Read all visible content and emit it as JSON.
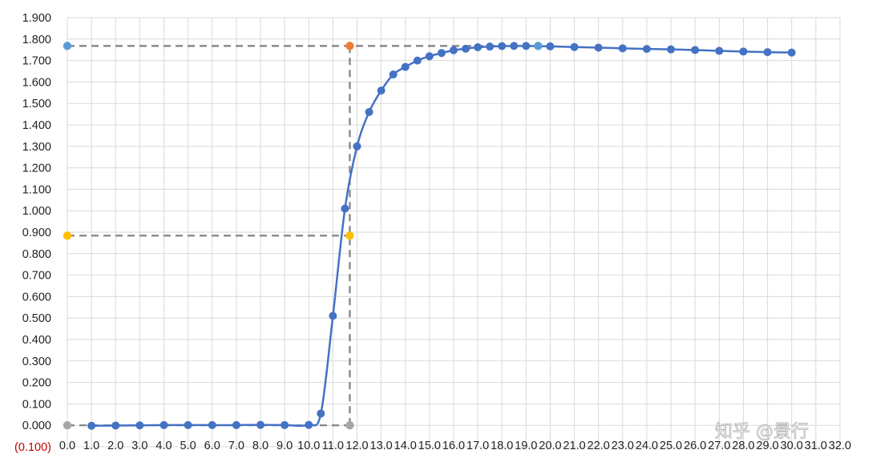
{
  "chart_data": {
    "type": "scatter",
    "title": "",
    "xlabel": "",
    "ylabel": "",
    "xlim": [
      0,
      32
    ],
    "ylim": [
      -0.1,
      1.9
    ],
    "y_ticks": [
      -0.1,
      0.0,
      0.1,
      0.2,
      0.3,
      0.4,
      0.5,
      0.6,
      0.7,
      0.8,
      0.9,
      1.0,
      1.1,
      1.2,
      1.3,
      1.4,
      1.5,
      1.6,
      1.7,
      1.8,
      1.9
    ],
    "y_tick_labels": [
      "(0.100)",
      "0.000",
      "0.100",
      "0.200",
      "0.300",
      "0.400",
      "0.500",
      "0.600",
      "0.700",
      "0.800",
      "0.900",
      "1.000",
      "1.100",
      "1.200",
      "1.300",
      "1.400",
      "1.500",
      "1.600",
      "1.700",
      "1.800",
      "1.900"
    ],
    "x_ticks": [
      0,
      1,
      2,
      3,
      4,
      5,
      6,
      7,
      8,
      9,
      10,
      11,
      12,
      13,
      14,
      15,
      16,
      17,
      18,
      19,
      20,
      21,
      22,
      23,
      24,
      25,
      26,
      27,
      28,
      29,
      30,
      31,
      32
    ],
    "x_tick_labels": [
      "0.0",
      "1.0",
      "2.0",
      "3.0",
      "4.0",
      "5.0",
      "6.0",
      "7.0",
      "8.0",
      "9.0",
      "10.0",
      "11.0",
      "12.0",
      "13.0",
      "14.0",
      "15.0",
      "16.0",
      "17.0",
      "18.0",
      "19.0",
      "20.0",
      "21.0",
      "22.0",
      "23.0",
      "24.0",
      "25.0",
      "26.0",
      "27.0",
      "28.0",
      "29.0",
      "30.0",
      "31.0",
      "32.0"
    ],
    "grid": true,
    "legend": "none",
    "series": [
      {
        "color": "#4472c4",
        "style": "smooth-line-with-markers",
        "x": [
          1,
          2,
          3,
          4,
          5,
          6,
          7,
          8,
          9,
          10,
          10.5,
          11,
          11.5,
          12,
          12.5,
          13,
          13.5,
          14,
          14.5,
          15,
          15.5,
          16,
          16.5,
          17,
          17.5,
          18,
          18.5,
          19,
          20,
          21,
          22,
          23,
          24,
          25,
          26,
          27,
          28,
          29,
          30
        ],
        "y": [
          -0.002,
          -0.001,
          0.0,
          0.001,
          0.001,
          0.001,
          0.001,
          0.002,
          0.001,
          0.002,
          0.055,
          0.51,
          1.01,
          1.3,
          1.46,
          1.56,
          1.635,
          1.67,
          1.7,
          1.72,
          1.735,
          1.748,
          1.755,
          1.762,
          1.765,
          1.767,
          1.768,
          1.768,
          1.766,
          1.763,
          1.76,
          1.757,
          1.754,
          1.752,
          1.749,
          1.745,
          1.742,
          1.739,
          1.737
        ]
      }
    ],
    "reference_points": [
      {
        "x": 0,
        "y": 1.768,
        "color": "#5b9bd5"
      },
      {
        "x": 11.7,
        "y": 1.768,
        "color": "#ed7d31"
      },
      {
        "x": 19.5,
        "y": 1.768,
        "color": "#5b9bd5"
      },
      {
        "x": 0,
        "y": 0.884,
        "color": "#ffc000"
      },
      {
        "x": 11.7,
        "y": 0.884,
        "color": "#ffc000"
      },
      {
        "x": 0,
        "y": 0.0,
        "color": "#a5a5a5"
      },
      {
        "x": 11.7,
        "y": 0.0,
        "color": "#a5a5a5"
      }
    ],
    "reference_lines": [
      {
        "x": [
          0,
          19.5
        ],
        "y": [
          1.768,
          1.768
        ]
      },
      {
        "x": [
          0,
          11.7
        ],
        "y": [
          0.884,
          0.884
        ]
      },
      {
        "x": [
          0,
          11.7
        ],
        "y": [
          0.0,
          0.0
        ]
      },
      {
        "x": [
          11.7,
          11.7
        ],
        "y": [
          0.0,
          1.768
        ]
      }
    ]
  },
  "watermark": "知乎 @景行",
  "colors": {
    "grid": "#d9d9d9",
    "reference_line": "#7f7f7f",
    "negative_label": "#c00000"
  }
}
